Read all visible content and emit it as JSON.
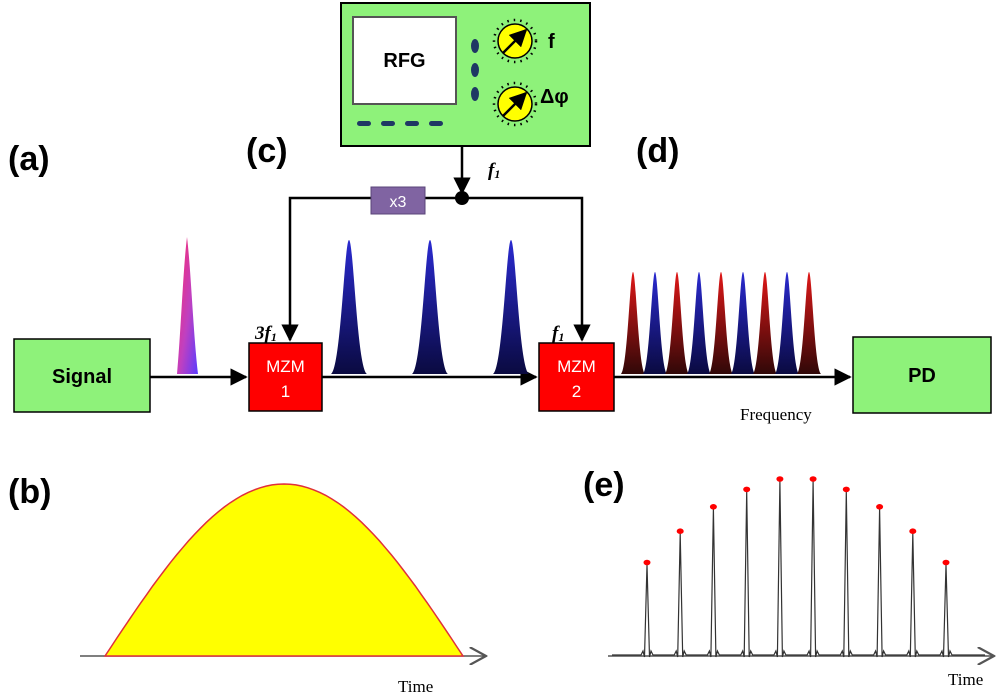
{
  "panels": {
    "a": "(a)",
    "b": "(b)",
    "c": "(c)",
    "d": "(d)",
    "e": "(e)"
  },
  "generator": {
    "label": "RFG",
    "knob_top_label": "f",
    "knob_bottom_label": "Δφ",
    "output_label_main": "f",
    "output_label_sub": "1"
  },
  "multiplier": {
    "label": "x3"
  },
  "signal": {
    "label": "Signal"
  },
  "mzm1": {
    "line1": "MZM",
    "line2": "1",
    "drive_main": "3f",
    "drive_sub": "1"
  },
  "mzm2": {
    "line1": "MZM",
    "line2": "2",
    "drive_main": "f",
    "drive_sub": "1"
  },
  "detector": {
    "label": "PD"
  },
  "axes": {
    "frequency": "Frequency",
    "time_b": "Time",
    "time_e": "Time"
  },
  "colors": {
    "box_green": "#8ef27a",
    "mzm_red": "#ff0000",
    "multiplier_purple": "#8064a2",
    "pulse_blue": "#1a1aa8",
    "pulse_red": "#d01010",
    "envelope_fill": "#ffff00",
    "envelope_stroke": "#e0303a",
    "knob_yellow": "#ffff00",
    "peak_marker": "#ff0000"
  },
  "pulse_trains": {
    "after_mzm1": {
      "count": 3,
      "colors": [
        "blue"
      ]
    },
    "after_mzm2": {
      "count": 9,
      "colors": [
        "red",
        "blue",
        "red",
        "blue",
        "red",
        "blue",
        "red",
        "blue",
        "red"
      ]
    }
  },
  "sampled_output": {
    "relative_peaks": [
      0.52,
      0.7,
      0.84,
      0.94,
      1.0,
      1.0,
      0.94,
      0.84,
      0.7,
      0.52
    ]
  }
}
